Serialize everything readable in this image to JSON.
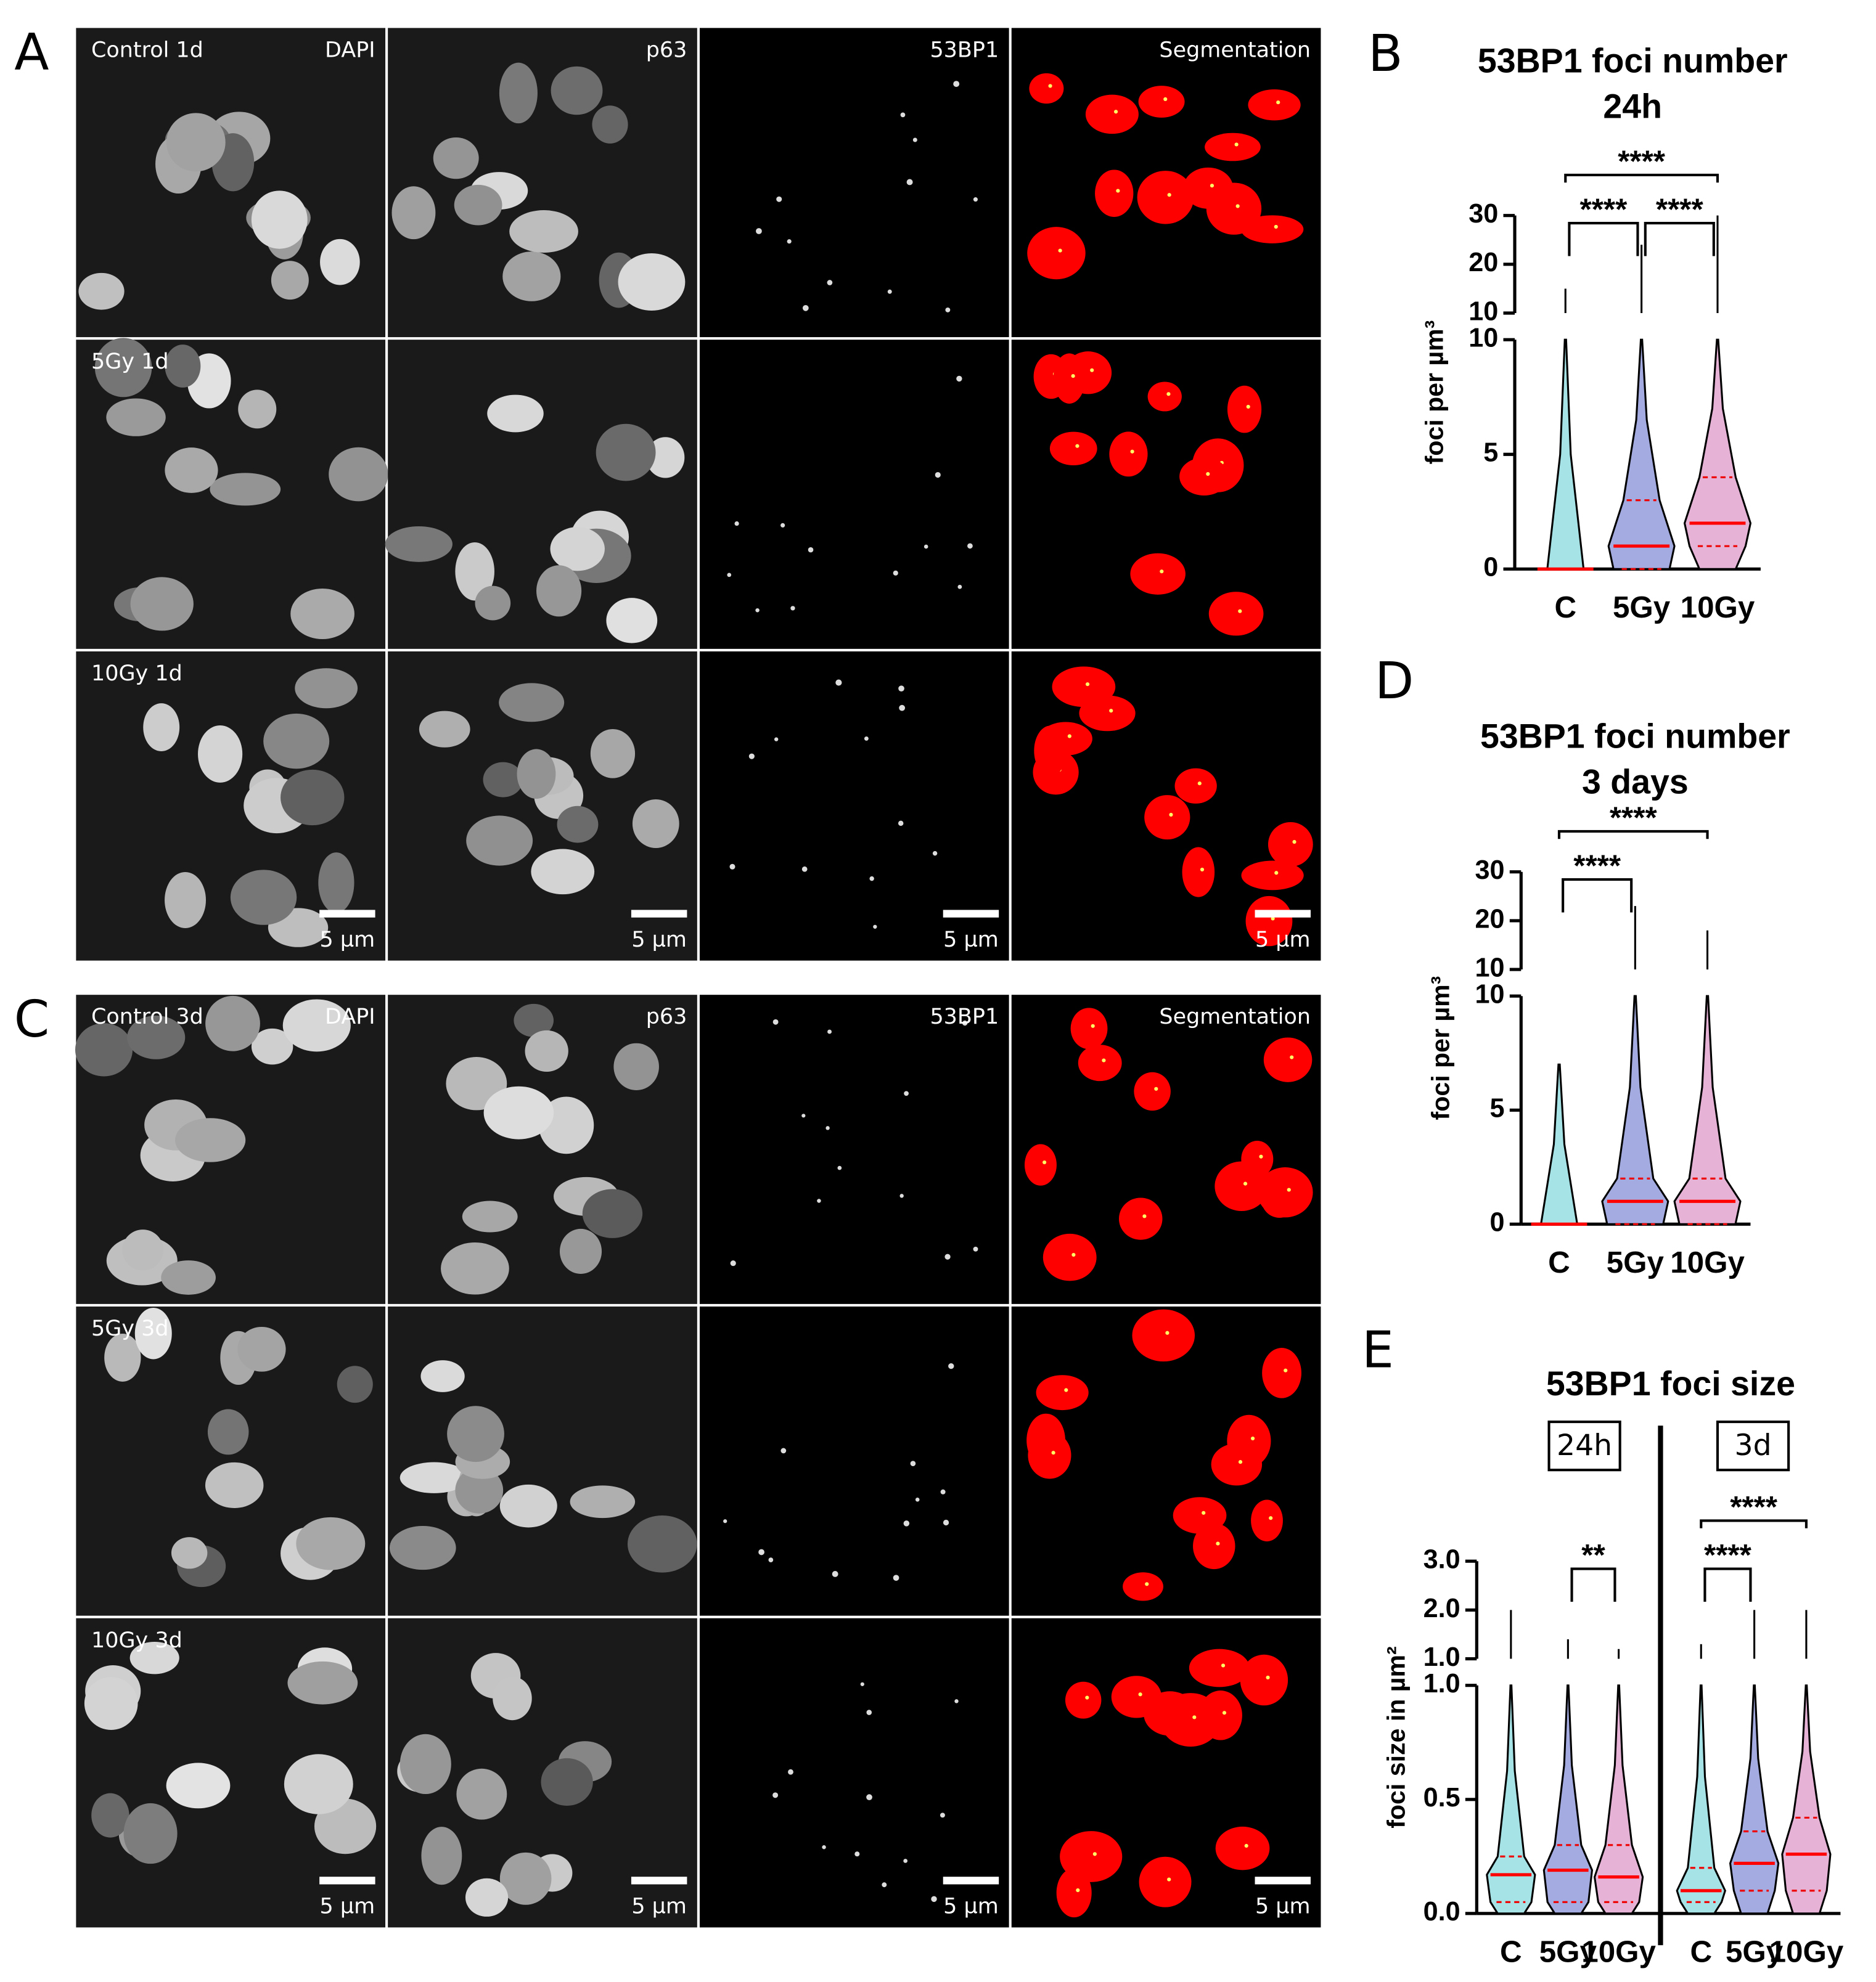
{
  "image_panels": [
    {
      "letter": "A",
      "columns": [
        "DAPI",
        "p63",
        "53BP1",
        "Segmentation"
      ],
      "rows": [
        "Control 1d",
        "5Gy 1d",
        "10Gy 1d"
      ],
      "scale_bar": "5 µm"
    },
    {
      "letter": "C",
      "columns": [
        "DAPI",
        "p63",
        "53BP1",
        "Segmentation"
      ],
      "rows": [
        "Control 3d",
        "5Gy 3d",
        "10Gy 3d"
      ],
      "scale_bar": "5 µm"
    }
  ],
  "charts": [
    {
      "type": "violin",
      "letter": "B",
      "title": "53BP1 foci number",
      "subtitle": "24h",
      "y_label": "foci per µm³",
      "ylim": [
        0,
        10
      ],
      "yticks": [
        0,
        5,
        10
      ],
      "ylim_upper": [
        10,
        30
      ],
      "yticks_upper": [
        10,
        20,
        30
      ],
      "groups": [
        {
          "categories": [
            "C",
            "5Gy",
            "10Gy"
          ],
          "colors": [
            "#a6e3e6",
            "#a3abe0",
            "#e6b3d6"
          ],
          "median": [
            0,
            1,
            2
          ],
          "q1": [
            0,
            0,
            1
          ],
          "q3": [
            0,
            3,
            4
          ],
          "max": [
            15,
            24,
            30
          ],
          "comparisons": [
            {
              "pair": [
                "C",
                "5Gy"
              ],
              "label": "****"
            },
            {
              "pair": [
                "5Gy",
                "10Gy"
              ],
              "label": "****"
            },
            {
              "pair": [
                "C",
                "10Gy"
              ],
              "label": "****"
            }
          ]
        }
      ]
    },
    {
      "type": "violin",
      "letter": "D",
      "title": "53BP1 foci number",
      "subtitle": "3 days",
      "y_label": "foci per µm³",
      "ylim": [
        0,
        10
      ],
      "yticks": [
        0,
        5,
        10
      ],
      "ylim_upper": [
        10,
        30
      ],
      "yticks_upper": [
        10,
        20,
        30
      ],
      "groups": [
        {
          "categories": [
            "C",
            "5Gy",
            "10Gy"
          ],
          "colors": [
            "#a6e3e6",
            "#a3abe0",
            "#e6b3d6"
          ],
          "median": [
            0,
            1,
            1
          ],
          "q1": [
            0,
            0,
            0
          ],
          "q3": [
            0,
            2,
            2
          ],
          "max": [
            7,
            23,
            18
          ],
          "comparisons": [
            {
              "pair": [
                "C",
                "5Gy"
              ],
              "label": "****"
            },
            {
              "pair": [
                "C",
                "10Gy"
              ],
              "label": "****"
            }
          ]
        }
      ]
    },
    {
      "type": "violin",
      "letter": "E",
      "title": "53BP1 foci size",
      "y_label": "foci size in µm²",
      "ylim": [
        0,
        1
      ],
      "yticks": [
        {
          "value": 0,
          "label": "0.0"
        },
        0.5,
        {
          "value": 1,
          "label": "1.0"
        }
      ],
      "ylim_upper": [
        1,
        3
      ],
      "yticks_upper": [
        {
          "value": 1,
          "label": "1.0"
        },
        {
          "value": 2,
          "label": "2.0"
        },
        {
          "value": 3,
          "label": "3.0"
        }
      ],
      "groups": [
        {
          "label": "24h",
          "categories": [
            "C",
            "5Gy",
            "10Gy"
          ],
          "colors": [
            "#a6e3e6",
            "#a3abe0",
            "#e6b3d6"
          ],
          "median": [
            0.17,
            0.19,
            0.16
          ],
          "q1": [
            0.05,
            0.05,
            0.05
          ],
          "q3": [
            0.25,
            0.3,
            0.3
          ],
          "max": [
            2,
            1.4,
            1.2
          ],
          "comparisons": [
            {
              "pair": [
                "5Gy",
                "10Gy"
              ],
              "label": "**"
            }
          ]
        },
        {
          "label": "3d",
          "categories": [
            "C",
            "5Gy",
            "10Gy"
          ],
          "colors": [
            "#a6e3e6",
            "#a3abe0",
            "#e6b3d6"
          ],
          "median": [
            0.1,
            0.22,
            0.26
          ],
          "q1": [
            0.05,
            0.1,
            0.1
          ],
          "q3": [
            0.2,
            0.36,
            0.42
          ],
          "max": [
            1.3,
            2,
            2
          ],
          "comparisons": [
            {
              "pair": [
                "C",
                "5Gy"
              ],
              "label": "****"
            },
            {
              "pair": [
                "C",
                "10Gy"
              ],
              "label": "****"
            }
          ]
        }
      ]
    }
  ]
}
